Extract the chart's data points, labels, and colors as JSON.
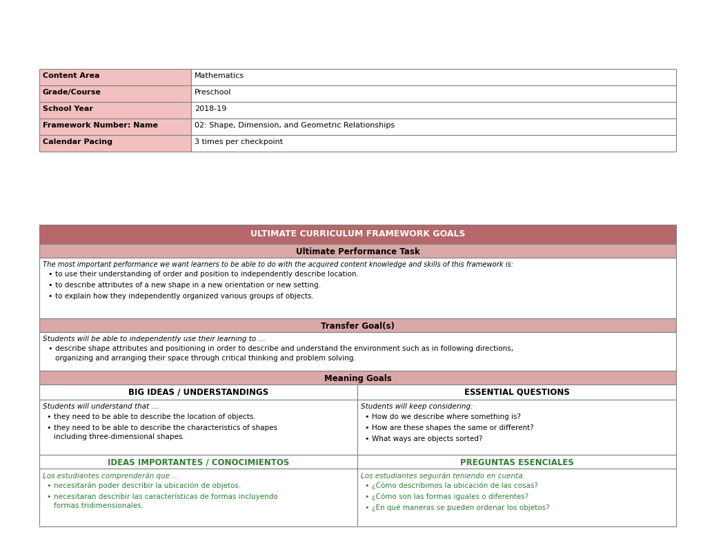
{
  "bg_color": "#ffffff",
  "top_table": {
    "rows": [
      {
        "label": "Content Area",
        "value": "Mathematics"
      },
      {
        "label": "Grade/Course",
        "value": "Preschool"
      },
      {
        "label": "School Year",
        "value": "2018-19"
      },
      {
        "label": "Framework Number: Name",
        "value": "02: Shape, Dimension, and Geometric Relationships"
      },
      {
        "label": "Calendar Pacing",
        "value": "3 times per checkpoint"
      }
    ],
    "label_bg": "#f2c0c0",
    "border_color": "#808080"
  },
  "bottom_table": {
    "header_bg": "#b5676a",
    "header_text": "ULTIMATE CURRICULUM FRAMEWORK GOALS",
    "header_color": "#ffffff",
    "subheader_bg": "#dba8a8",
    "section_bg": "#dba8a8",
    "border_color": "#808080",
    "green_color": "#2e7d32"
  }
}
